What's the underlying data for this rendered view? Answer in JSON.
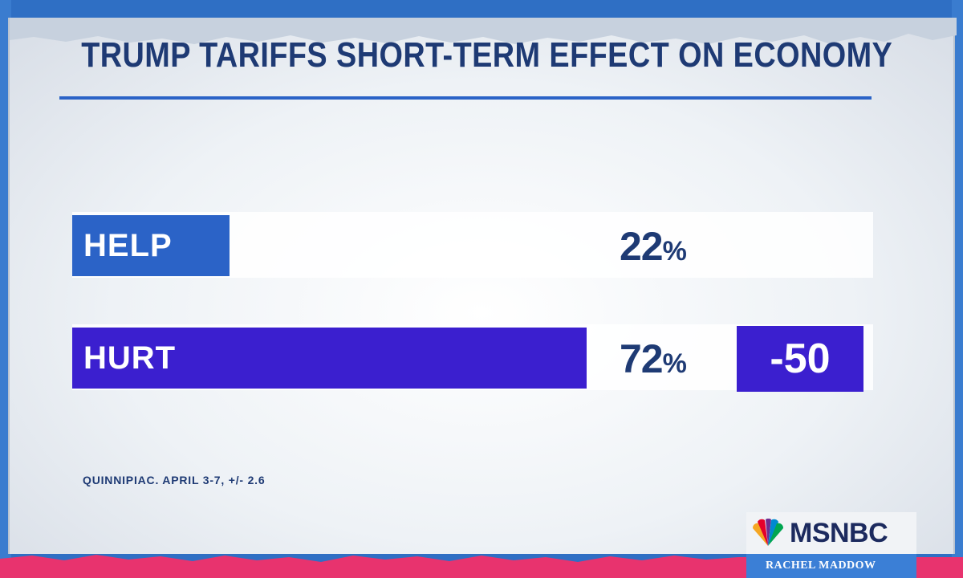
{
  "chart_data": {
    "type": "bar",
    "title": "TRUMP TARIFFS SHORT-TERM EFFECT ON ECONOMY",
    "categories": [
      "HELP",
      "HURT"
    ],
    "values": [
      22,
      72
    ],
    "value_labels": [
      "22",
      "72"
    ],
    "unit": "%",
    "ylim": [
      0,
      100
    ],
    "difference": "-50",
    "source": "QUINNIPIAC. APRIL 3-7, +/- 2.6",
    "colors": [
      "#2b63c7",
      "#3b1fcf"
    ]
  },
  "branding": {
    "network": "MSNBC",
    "show": "RACHEL MADDOW"
  },
  "colors": {
    "title": "#1e3a74",
    "help_bar": "#2b63c7",
    "hurt_bar": "#3b1fcf",
    "accent_pink": "#e8336e",
    "frame_blue": "#2f6fc4"
  },
  "icons": {
    "logo": "nbc-peacock-icon"
  }
}
